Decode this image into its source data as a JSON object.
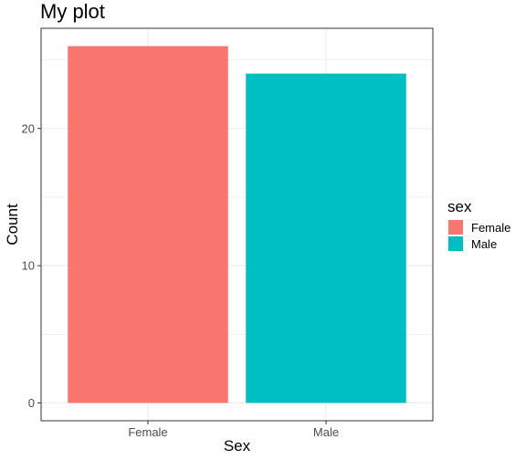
{
  "chart_data": {
    "type": "bar",
    "title": "My plot",
    "xlabel": "Sex",
    "ylabel": "Count",
    "categories": [
      "Female",
      "Male"
    ],
    "values": [
      26,
      24
    ],
    "colors": [
      "#f8766d",
      "#00bfc4"
    ],
    "ylim": [
      -1.3,
      27.3
    ],
    "yticks": [
      0,
      10,
      20
    ],
    "grid": true,
    "legend": {
      "title": "sex",
      "position": "right",
      "entries": [
        "Female",
        "Male"
      ]
    }
  }
}
